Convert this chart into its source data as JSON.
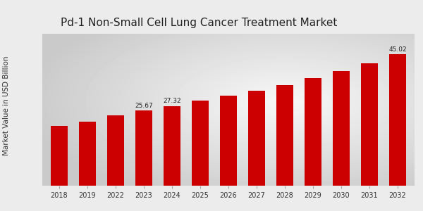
{
  "title": "Pd-1 Non-Small Cell Lung Cancer Treatment Market",
  "ylabel": "Market Value in USD Billion",
  "categories": [
    "2018",
    "2019",
    "2022",
    "2023",
    "2024",
    "2025",
    "2026",
    "2027",
    "2028",
    "2029",
    "2030",
    "2031",
    "2032"
  ],
  "values": [
    20.5,
    21.8,
    24.12,
    25.67,
    27.32,
    29.1,
    30.8,
    32.5,
    34.5,
    36.8,
    39.2,
    42.0,
    45.02
  ],
  "bar_color": "#cc0000",
  "label_values": {
    "2023": "25.67",
    "2024": "27.32",
    "2032": "45.02"
  },
  "ylim": [
    0,
    52
  ],
  "title_fontsize": 11,
  "label_fontsize": 6.5,
  "tick_fontsize": 7,
  "bottom_stripe_color": "#cc0000",
  "bg_light": "#f0f0f0",
  "bg_dark": "#c8c8c8"
}
